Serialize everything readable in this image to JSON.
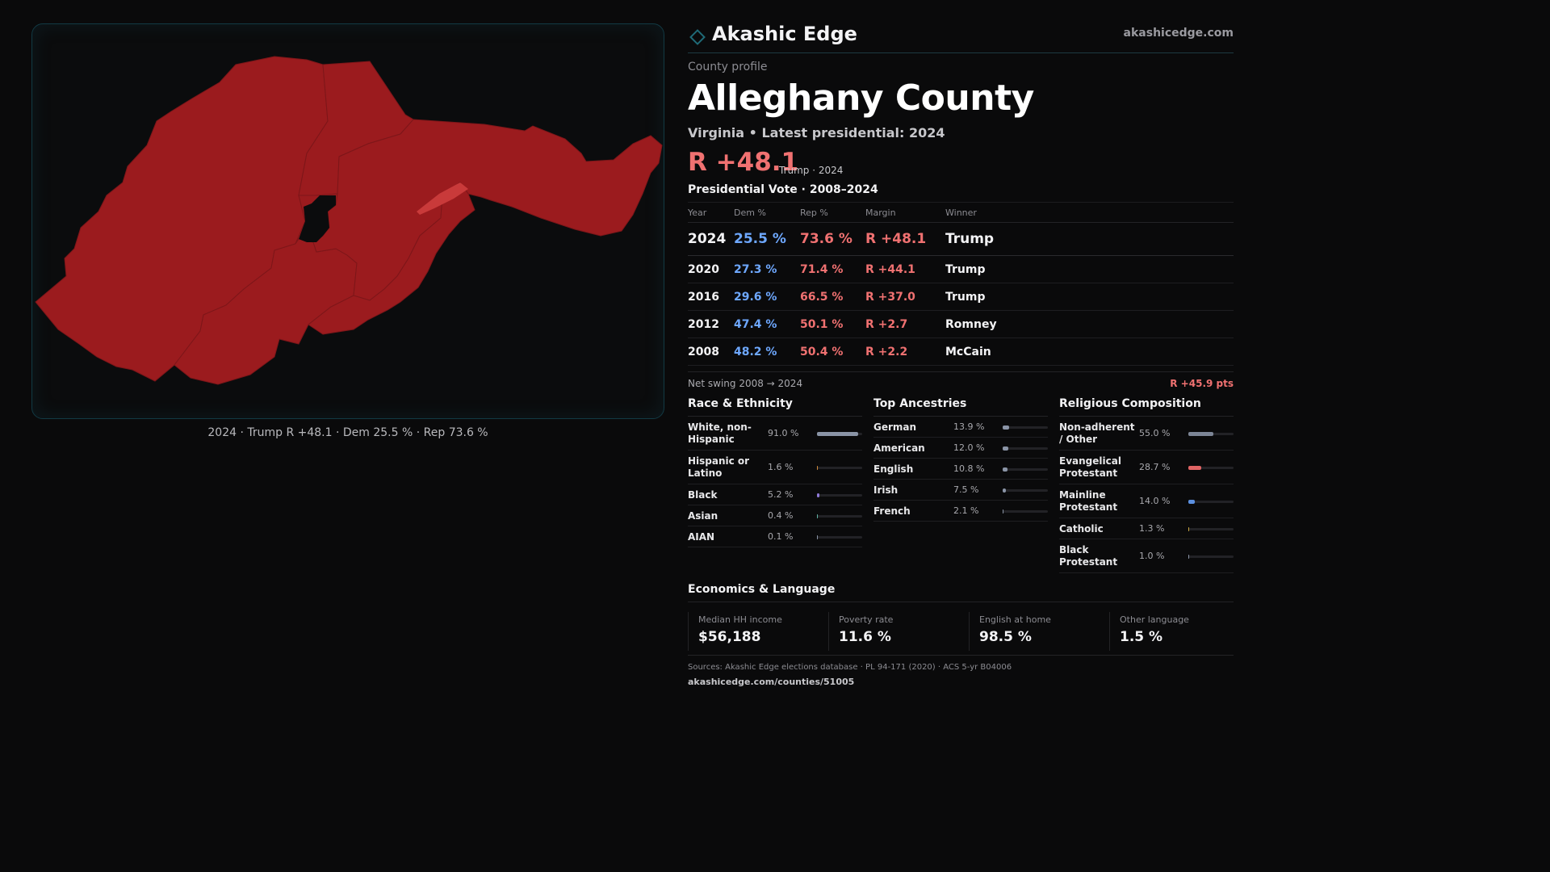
{
  "brand": {
    "name": "Akashic Edge",
    "url": "akashicedge.com"
  },
  "profile": {
    "kicker": "County profile",
    "county": "Alleghany County",
    "subline": "Virginia • Latest presidential: 2024",
    "headline_margin": "R +48.1",
    "headline_winner": "Trump · 2024"
  },
  "map": {
    "caption": "2024 · Trump R +48.1 · Dem 25.5 % · Rep 73.6 %",
    "fill_color": "#9b1b1e",
    "border_color": "#0b0c0d",
    "independent_city_color": "#c93a3a"
  },
  "presidential": {
    "title": "Presidential Vote · 2008–2024",
    "headers": {
      "year": "Year",
      "dem": "Dem %",
      "rep": "Rep %",
      "margin": "Margin",
      "winner": "Winner"
    },
    "rows": [
      {
        "year": "2024",
        "dem": "25.5 %",
        "rep": "73.6 %",
        "margin": "R +48.1",
        "winner": "Trump"
      },
      {
        "year": "2020",
        "dem": "27.3 %",
        "rep": "71.4 %",
        "margin": "R +44.1",
        "winner": "Trump"
      },
      {
        "year": "2016",
        "dem": "29.6 %",
        "rep": "66.5 %",
        "margin": "R +37.0",
        "winner": "Trump"
      },
      {
        "year": "2012",
        "dem": "47.4 %",
        "rep": "50.1 %",
        "margin": "R +2.7",
        "winner": "Romney"
      },
      {
        "year": "2008",
        "dem": "48.2 %",
        "rep": "50.4 %",
        "margin": "R +2.2",
        "winner": "McCain"
      }
    ],
    "swing_label": "Net swing 2008 → 2024",
    "swing_value": "R +45.9 pts"
  },
  "race": {
    "title": "Race & Ethnicity",
    "rows": [
      {
        "label": "White, non-Hispanic",
        "value": "91.0 %",
        "pct": 91.0,
        "color": "#8a94a6"
      },
      {
        "label": "Hispanic or Latino",
        "value": "1.6 %",
        "pct": 1.6,
        "color": "#d08b3a"
      },
      {
        "label": "Black",
        "value": "5.2 %",
        "pct": 5.2,
        "color": "#8f7ad8"
      },
      {
        "label": "Asian",
        "value": "0.4 %",
        "pct": 0.4,
        "color": "#5fb3a3"
      },
      {
        "label": "AIAN",
        "value": "0.1 %",
        "pct": 0.1,
        "color": "#8a94a6"
      }
    ]
  },
  "ancestry": {
    "title": "Top Ancestries",
    "rows": [
      {
        "label": "German",
        "value": "13.9 %",
        "pct": 13.9,
        "color": "#8a94a6"
      },
      {
        "label": "American",
        "value": "12.0 %",
        "pct": 12.0,
        "color": "#8a94a6"
      },
      {
        "label": "English",
        "value": "10.8 %",
        "pct": 10.8,
        "color": "#8a94a6"
      },
      {
        "label": "Irish",
        "value": "7.5 %",
        "pct": 7.5,
        "color": "#8a94a6"
      },
      {
        "label": "French",
        "value": "2.1 %",
        "pct": 2.1,
        "color": "#8a94a6"
      }
    ]
  },
  "religion": {
    "title": "Religious Composition",
    "rows": [
      {
        "label": "Non-adherent / Other",
        "value": "55.0 %",
        "pct": 55.0,
        "color": "#7c8596"
      },
      {
        "label": "Evangelical Protestant",
        "value": "28.7 %",
        "pct": 28.7,
        "color": "#e06464"
      },
      {
        "label": "Mainline Protestant",
        "value": "14.0 %",
        "pct": 14.0,
        "color": "#5b8fe0"
      },
      {
        "label": "Catholic",
        "value": "1.3 %",
        "pct": 1.3,
        "color": "#c9a640"
      },
      {
        "label": "Black Protestant",
        "value": "1.0 %",
        "pct": 1.0,
        "color": "#8a94a6"
      }
    ]
  },
  "economics": {
    "title": "Economics & Language",
    "cells": [
      {
        "label": "Median HH income",
        "value": "$56,188"
      },
      {
        "label": "Poverty rate",
        "value": "11.6 %"
      },
      {
        "label": "English at home",
        "value": "98.5 %"
      },
      {
        "label": "Other language",
        "value": "1.5 %"
      }
    ]
  },
  "footer": {
    "sources": "Sources: Akashic Edge elections database · PL 94-171 (2020) · ACS 5-yr B04006",
    "page_url": "akashicedge.com/counties/51005"
  }
}
